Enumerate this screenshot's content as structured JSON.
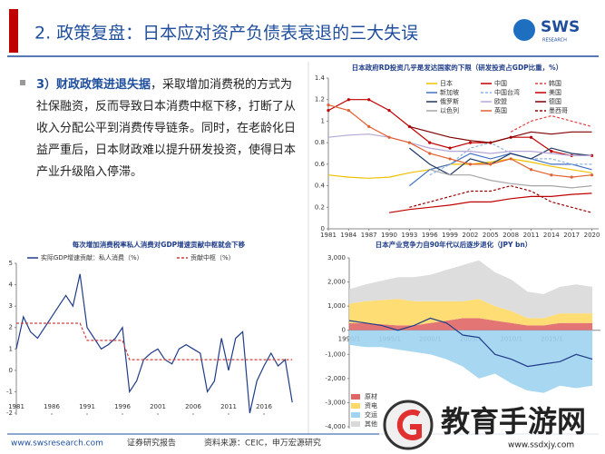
{
  "header": {
    "title": "2. 政策复盘：日本应对资产负债表衰退的三大失误",
    "logo": "SWS",
    "logo_sub": "RESEARCH"
  },
  "body": {
    "lead": "3）财政政策进退失据",
    "text": "，采取增加消费税的方式为社保融资，反而导致日本消费中枢下移，打断了从收入分配公平到消费传导链条。同时，在老龄化日益严重后，日本财政难以提升研发投资，使得日本产业升级陷入停滞。"
  },
  "footer": {
    "site": "www.swsresearch.com",
    "label": "证券研究报告",
    "source": "资料来源：CEIC，申万宏源研究"
  },
  "watermark": {
    "name": "教育手游网",
    "url": "www.ssdxjy.com"
  },
  "chart_data": [
    {
      "type": "line",
      "title": "日本政府RD投资几乎是发达国家的下限（研发投资占GDP比重，%）",
      "x": [
        1981,
        1984,
        1987,
        1990,
        1993,
        1996,
        1999,
        2002,
        2005,
        2008,
        2011,
        2014,
        2017,
        2020
      ],
      "xlim": [
        1981,
        2021
      ],
      "xticks": [
        1981,
        1984,
        1987,
        1990,
        1993,
        1996,
        1999,
        2002,
        2005,
        2008,
        2011,
        2014,
        2017,
        2020
      ],
      "ylim": [
        0,
        1.4
      ],
      "yticks": [
        0,
        0.2,
        0.4,
        0.6,
        0.8,
        1,
        1.2,
        1.4
      ],
      "series": [
        {
          "name": "日本",
          "color": "#f0c000",
          "values": [
            0.5,
            0.48,
            0.47,
            0.48,
            0.52,
            0.55,
            0.6,
            0.6,
            0.62,
            0.65,
            0.62,
            0.58,
            0.55,
            0.52
          ]
        },
        {
          "name": "中国",
          "color": "#c00000",
          "values": [
            null,
            null,
            null,
            0.15,
            0.18,
            0.2,
            0.22,
            0.25,
            0.25,
            0.28,
            0.3,
            0.3,
            0.32,
            0.33
          ]
        },
        {
          "name": "韩国",
          "color": "#e04040",
          "dash": true,
          "values": [
            null,
            null,
            null,
            null,
            null,
            null,
            null,
            null,
            null,
            0.9,
            1.0,
            1.05,
            1.0,
            0.95
          ]
        },
        {
          "name": "新加坡",
          "color": "#4472c4",
          "values": [
            null,
            null,
            null,
            null,
            0.4,
            0.55,
            0.6,
            0.7,
            0.65,
            0.7,
            0.65,
            0.6,
            0.6,
            0.55
          ]
        },
        {
          "name": "中国台湾",
          "color": "#8ab4e0",
          "dash": true,
          "values": [
            null,
            null,
            null,
            null,
            null,
            0.5,
            0.6,
            0.75,
            0.8,
            0.7,
            0.65,
            0.65,
            0.6,
            0.6
          ]
        },
        {
          "name": "美国",
          "color": "#c00000",
          "marker": true,
          "values": [
            1.1,
            1.2,
            1.2,
            1.1,
            0.95,
            0.8,
            0.75,
            0.8,
            0.8,
            0.85,
            0.85,
            0.72,
            0.68,
            0.68
          ]
        },
        {
          "name": "俄罗斯",
          "color": "#1f3864",
          "values": [
            null,
            null,
            null,
            null,
            0.75,
            0.6,
            0.5,
            0.65,
            0.6,
            0.7,
            0.65,
            0.75,
            0.7,
            0.68
          ]
        },
        {
          "name": "欧盟",
          "color": "#b4a7d6",
          "values": [
            0.85,
            0.87,
            0.88,
            0.85,
            0.8,
            0.75,
            0.72,
            0.72,
            0.7,
            0.72,
            0.72,
            0.7,
            0.68,
            0.68
          ]
        },
        {
          "name": "德国",
          "color": "#7f0000",
          "values": [
            null,
            null,
            null,
            null,
            0.95,
            0.9,
            0.85,
            0.82,
            0.8,
            0.85,
            0.9,
            0.88,
            0.9,
            0.9
          ]
        },
        {
          "name": "以色列",
          "color": "#a6a6a6",
          "values": [
            null,
            null,
            null,
            null,
            null,
            0.55,
            0.5,
            0.5,
            0.45,
            0.42,
            0.4,
            0.4,
            0.38,
            0.4
          ]
        },
        {
          "name": "英国",
          "color": "#e06030",
          "marker": true,
          "values": [
            1.15,
            1.1,
            0.95,
            0.85,
            0.8,
            0.7,
            0.65,
            0.6,
            0.6,
            0.65,
            0.55,
            0.5,
            0.48,
            0.5
          ]
        },
        {
          "name": "墨西哥",
          "color": "#990000",
          "dash": true,
          "values": [
            null,
            null,
            null,
            null,
            0.2,
            0.25,
            0.3,
            0.35,
            0.35,
            0.4,
            0.35,
            0.25,
            0.2,
            0.15
          ]
        }
      ]
    },
    {
      "type": "line",
      "title": "每次增加消费税率私人消费对GDP增速贡献中枢就会下移",
      "x": [
        1981,
        1982,
        1983,
        1984,
        1985,
        1986,
        1987,
        1988,
        1989,
        1990,
        1991,
        1992,
        1993,
        1994,
        1995,
        1996,
        1997,
        1998,
        1999,
        2000,
        2001,
        2002,
        2003,
        2004,
        2005,
        2006,
        2007,
        2008,
        2009,
        2010,
        2011,
        2012,
        2013,
        2014,
        2015,
        2016,
        2017,
        2018,
        2019,
        2020
      ],
      "xlim": [
        1981,
        2021
      ],
      "xticks": [
        1981,
        1986,
        1991,
        1996,
        2001,
        2006,
        2011,
        2016
      ],
      "ylim": [
        -2,
        5
      ],
      "yticks": [
        -2,
        -1,
        0,
        1,
        2,
        3,
        4,
        5
      ],
      "series": [
        {
          "name": "实际GDP增速贡献：私人消费（%）",
          "color": "#1f3c88",
          "values": [
            1.0,
            2.5,
            1.8,
            1.5,
            2.0,
            2.5,
            3.0,
            3.5,
            3.0,
            4.5,
            2.0,
            1.5,
            1.0,
            1.2,
            1.5,
            2.0,
            -1.0,
            -0.5,
            0.5,
            0.8,
            1.0,
            0.5,
            0.3,
            1.0,
            1.2,
            1.0,
            0.8,
            -1.0,
            -0.5,
            1.5,
            0.0,
            1.5,
            1.8,
            -2.0,
            -0.5,
            0.2,
            0.8,
            0.2,
            0.5,
            -1.5
          ]
        },
        {
          "name": "贡献中枢（%）",
          "color": "#d04040",
          "dash": true,
          "values": [
            2.2,
            2.2,
            2.2,
            2.2,
            2.2,
            2.2,
            2.2,
            2.2,
            2.2,
            2.2,
            1.4,
            1.4,
            1.4,
            1.4,
            1.4,
            1.4,
            0.5,
            0.5,
            0.5,
            0.5,
            0.5,
            0.5,
            0.5,
            0.5,
            0.5,
            0.5,
            0.5,
            0.5,
            0.5,
            0.5,
            0.5,
            0.5,
            0.5,
            0.5,
            0.5,
            0.5,
            0.5,
            0.5,
            0.5,
            0.5
          ]
        }
      ]
    },
    {
      "type": "area",
      "title": "日本产业竞争力自90年代以后逐步退化（JPY bn）",
      "x": [
        1990,
        1992,
        1994,
        1996,
        1998,
        2000,
        2002,
        2004,
        2006,
        2008,
        2010,
        2012,
        2014,
        2016,
        2018,
        2020
      ],
      "xlim": [
        1990,
        2021
      ],
      "xticks": [
        {
          "value": 1990,
          "label": "1990/1"
        },
        {
          "value": 1995,
          "label": "1995/1"
        },
        {
          "value": 2000,
          "label": "2000/1"
        },
        {
          "value": 2005,
          "label": "2005/1"
        },
        {
          "value": 2010,
          "label": "2010/1"
        },
        {
          "value": 2015,
          "label": "2015/1"
        }
      ],
      "ylim": [
        -4000,
        3000
      ],
      "yticks": [
        {
          "value": 3000,
          "label": "3,000"
        },
        {
          "value": 2000,
          "label": "2,000"
        },
        {
          "value": 1000,
          "label": "1,000"
        },
        0,
        {
          "value": -1000,
          "label": "-1,000"
        },
        {
          "value": -2000,
          "label": "-2,000"
        },
        {
          "value": -3000,
          "label": "-3,000"
        },
        {
          "value": -4000,
          "label": "-4,000"
        }
      ],
      "series": [
        {
          "name": "原材",
          "color": "#e06666",
          "values": [
            300,
            300,
            250,
            200,
            200,
            300,
            400,
            500,
            500,
            400,
            300,
            200,
            200,
            300,
            300,
            300
          ]
        },
        {
          "name": "资电",
          "color": "#ffd966",
          "values": [
            800,
            900,
            1000,
            1100,
            1000,
            900,
            800,
            700,
            800,
            600,
            500,
            300,
            300,
            400,
            400,
            400
          ]
        },
        {
          "name": "交运",
          "color": "#9fd3f0",
          "values": [
            -600,
            -700,
            -700,
            -800,
            -900,
            -1000,
            -1200,
            -1500,
            -2000,
            -1800,
            -2200,
            -2500,
            -2600,
            -2300,
            -2400,
            -2300
          ]
        },
        {
          "name": "其他",
          "color": "#d9d9d9",
          "values": [
            600,
            700,
            800,
            900,
            1000,
            1100,
            1300,
            1500,
            1600,
            1400,
            1300,
            1100,
            1000,
            1100,
            1200,
            1100
          ]
        },
        {
          "kind": "line",
          "color": "#1f3c88",
          "values": [
            400,
            300,
            200,
            0,
            200,
            500,
            300,
            -200,
            -300,
            -1000,
            -1200,
            -1500,
            -1400,
            -1300,
            -1000,
            -1200
          ]
        }
      ]
    }
  ]
}
